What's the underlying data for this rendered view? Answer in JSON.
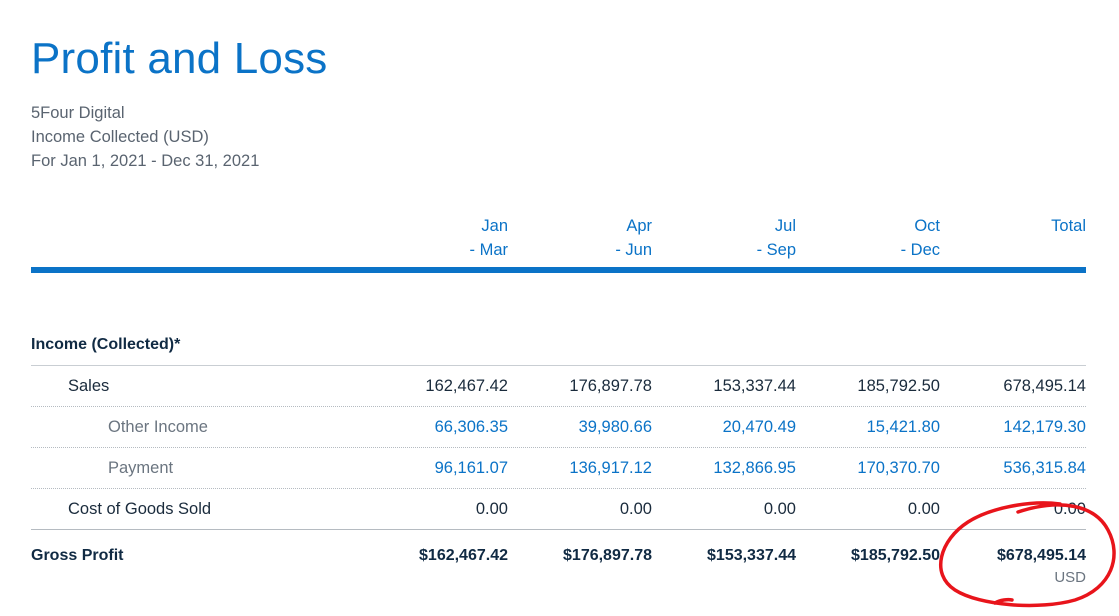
{
  "report": {
    "title": "Profit and Loss",
    "company": "5Four Digital",
    "basis": "Income Collected (USD)",
    "period": "For Jan 1, 2021 - Dec 31, 2021"
  },
  "columns": [
    {
      "line1": "Jan",
      "line2": "- Mar"
    },
    {
      "line1": "Apr",
      "line2": "- Jun"
    },
    {
      "line1": "Jul",
      "line2": "- Sep"
    },
    {
      "line1": "Oct",
      "line2": "- Dec"
    },
    {
      "line1": "Total",
      "line2": ""
    }
  ],
  "section": {
    "title": "Income (Collected)*"
  },
  "rows": [
    {
      "label": "Sales",
      "values": [
        "162,467.42",
        "176,897.78",
        "153,337.44",
        "185,792.50",
        "678,495.14"
      ]
    },
    {
      "label": "Other Income",
      "values": [
        "66,306.35",
        "39,980.66",
        "20,470.49",
        "15,421.80",
        "142,179.30"
      ]
    },
    {
      "label": "Payment",
      "values": [
        "96,161.07",
        "136,917.12",
        "132,866.95",
        "170,370.70",
        "536,315.84"
      ]
    },
    {
      "label": "Cost of Goods Sold",
      "values": [
        "0.00",
        "0.00",
        "0.00",
        "0.00",
        "0.00"
      ]
    }
  ],
  "gross_profit": {
    "label": "Gross Profit",
    "values": [
      "$162,467.42",
      "$176,897.78",
      "$153,337.44",
      "$185,792.50",
      "$678,495.14"
    ],
    "currency": "USD"
  },
  "annotation": {
    "color": "#e8141b",
    "shape": "hand-drawn-ellipse"
  },
  "colors": {
    "accent": "#0b73c7",
    "text": "#1a2b3c",
    "muted": "#6b7580"
  }
}
